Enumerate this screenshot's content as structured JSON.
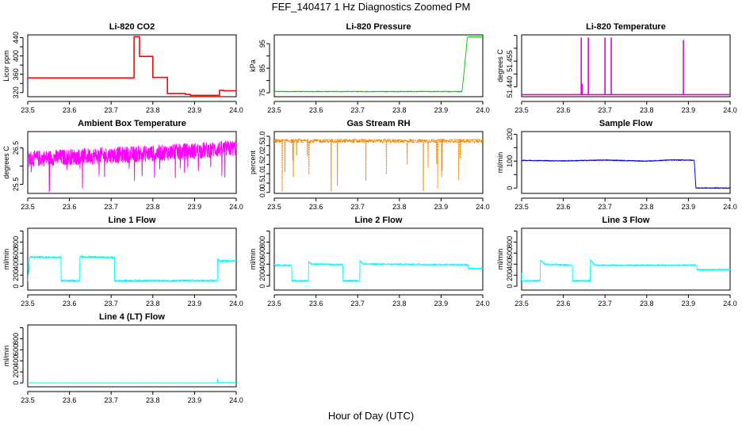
{
  "page": {
    "title": "FEF_140417  1 Hz Diagnostics Zoomed PM",
    "xlabel": "Hour of Day (UTC)"
  },
  "chart_data": [
    {
      "type": "line",
      "title": "Li-820 CO2",
      "xlabel": "",
      "ylabel": "Licor ppm",
      "color": "#ff0000",
      "xlim": [
        23.5,
        24.0
      ],
      "ylim": [
        311,
        446
      ],
      "xticks": [
        23.5,
        23.6,
        23.7,
        23.8,
        23.9,
        24.0
      ],
      "yticks": [
        320,
        340,
        360,
        380,
        400,
        420,
        440
      ],
      "ytick_labels": [
        "320",
        "",
        "360",
        "",
        "400",
        "",
        "440"
      ],
      "x": [
        23.5,
        23.755,
        23.755,
        23.768,
        23.768,
        23.8,
        23.8,
        23.835,
        23.835,
        23.878,
        23.878,
        23.89,
        23.89,
        23.96,
        23.96,
        23.97,
        23.97,
        24.0
      ],
      "y": [
        352,
        352,
        442,
        442,
        399,
        399,
        353,
        353,
        318,
        318,
        316,
        316,
        314,
        314,
        325,
        325,
        324,
        324
      ]
    },
    {
      "type": "line",
      "title": "Li-820 Pressure",
      "xlabel": "",
      "ylabel": "kPa",
      "color": "#00cc00",
      "xlim": [
        23.5,
        24.0
      ],
      "ylim": [
        73.4,
        98.6
      ],
      "xticks": [
        23.5,
        23.6,
        23.7,
        23.8,
        23.9,
        24.0
      ],
      "yticks": [
        75,
        80,
        85,
        90,
        95
      ],
      "ytick_labels": [
        "75",
        "",
        "85",
        "",
        "95"
      ],
      "x": [
        23.5,
        23.9,
        23.95,
        23.955,
        23.96,
        23.963,
        23.965,
        24.0
      ],
      "y": [
        75.5,
        75.5,
        75.5,
        83,
        92,
        97.6,
        97.8,
        97.8
      ]
    },
    {
      "type": "line",
      "title": "Li-820 Temperature",
      "xlabel": "",
      "ylabel": "degrees C",
      "color": "#dd00dd",
      "xlim": [
        23.5,
        24.0
      ],
      "ylim": [
        51.4362,
        51.4602
      ],
      "xticks": [
        23.5,
        23.6,
        23.7,
        23.8,
        23.9,
        24.0
      ],
      "yticks": [
        51.44,
        51.445,
        51.45,
        51.455,
        51.46
      ],
      "ytick_labels": [
        "51.440",
        "",
        "51.455",
        "",
        ""
      ],
      "x": [
        23.5,
        23.643,
        23.643,
        23.643,
        23.645,
        23.645,
        23.645,
        23.66,
        23.66,
        23.66,
        23.7,
        23.7,
        23.7,
        23.715,
        23.715,
        23.715,
        23.888,
        23.888,
        23.888,
        24.0
      ],
      "y": [
        51.437,
        51.437,
        51.459,
        51.437,
        51.437,
        51.441,
        51.437,
        51.437,
        51.459,
        51.437,
        51.437,
        51.459,
        51.437,
        51.437,
        51.459,
        51.437,
        51.437,
        51.458,
        51.437,
        51.437
      ]
    },
    {
      "type": "line",
      "title": "Ambient Box Temperature",
      "xlabel": "",
      "ylabel": "degrees C",
      "color": "#ff00ff",
      "xlim": [
        23.5,
        24.0
      ],
      "ylim": [
        25.25,
        26.95
      ],
      "xticks": [
        23.5,
        23.6,
        23.7,
        23.8,
        23.9,
        24.0
      ],
      "yticks": [
        25.5,
        26.0,
        26.5
      ],
      "ytick_labels": [
        "25.5",
        "",
        "26.5"
      ],
      "x": [
        23.5,
        23.6,
        23.7,
        23.8,
        23.9,
        24.0
      ],
      "y": [
        26.2,
        26.25,
        26.3,
        26.35,
        26.42,
        26.5
      ]
    },
    {
      "type": "line",
      "title": "Gas Stream RH",
      "xlabel": "",
      "ylabel": "percent",
      "color": "#ee8800",
      "xlim": [
        23.5,
        24.0
      ],
      "ylim": [
        -0.05,
        3.25
      ],
      "xticks": [
        23.5,
        23.6,
        23.7,
        23.8,
        23.9,
        24.0
      ],
      "yticks": [
        0.0,
        0.5,
        1.0,
        1.5,
        2.0,
        2.5,
        3.0
      ],
      "ytick_labels": [
        "0.0",
        "0.5",
        "1.0",
        "1.5",
        "2.0",
        "2.5",
        "3.0"
      ],
      "x": [
        23.5,
        23.6,
        23.7,
        23.8,
        23.9,
        24.0
      ],
      "y": [
        2.75,
        2.75,
        2.75,
        2.75,
        2.75,
        2.75
      ]
    },
    {
      "type": "line",
      "title": "Sample Flow",
      "xlabel": "",
      "ylabel": "ml/min",
      "color": "#0000dd",
      "xlim": [
        23.5,
        24.0
      ],
      "ylim": [
        -20,
        210
      ],
      "xticks": [
        23.5,
        23.6,
        23.7,
        23.8,
        23.9,
        24.0
      ],
      "yticks": [
        0,
        50,
        100,
        150,
        200
      ],
      "ytick_labels": [
        "0",
        "",
        "100",
        "",
        "200"
      ],
      "x": [
        23.5,
        23.6,
        23.7,
        23.8,
        23.85,
        23.9,
        23.914,
        23.918,
        24.0
      ],
      "y": [
        103,
        101,
        104,
        100,
        104,
        104,
        103,
        0,
        0
      ]
    },
    {
      "type": "line",
      "title": "Line 1 Flow",
      "xlabel": "",
      "ylabel": "ml/min",
      "color": "#00ffff",
      "xlim": [
        23.5,
        24.0
      ],
      "ylim": [
        -70,
        1050
      ],
      "xticks": [
        23.5,
        23.6,
        23.7,
        23.8,
        23.9,
        24.0
      ],
      "yticks": [
        0,
        200,
        400,
        600,
        800,
        1000
      ],
      "ytick_labels": [
        "0",
        "200",
        "400",
        "600",
        "800",
        ""
      ],
      "x": [
        23.5,
        23.505,
        23.58,
        23.58,
        23.625,
        23.625,
        23.63,
        23.708,
        23.708,
        23.955,
        23.955,
        23.96,
        23.97,
        24.0
      ],
      "y": [
        100,
        530,
        520,
        100,
        100,
        550,
        530,
        520,
        100,
        100,
        500,
        450,
        460,
        460
      ]
    },
    {
      "type": "line",
      "title": "Line 2 Flow",
      "xlabel": "",
      "ylabel": "ml/min",
      "color": "#00ffff",
      "xlim": [
        23.5,
        24.0
      ],
      "ylim": [
        -70,
        1050
      ],
      "xticks": [
        23.5,
        23.6,
        23.7,
        23.8,
        23.9,
        24.0
      ],
      "yticks": [
        0,
        200,
        400,
        600,
        800,
        1000
      ],
      "ytick_labels": [
        "0",
        "200",
        "400",
        "600",
        "800",
        ""
      ],
      "x": [
        23.5,
        23.542,
        23.542,
        23.582,
        23.582,
        23.59,
        23.665,
        23.665,
        23.705,
        23.705,
        23.715,
        23.965,
        23.965,
        24.0
      ],
      "y": [
        380,
        380,
        100,
        100,
        450,
        400,
        390,
        100,
        100,
        460,
        400,
        390,
        320,
        320
      ]
    },
    {
      "type": "line",
      "title": "Line 3 Flow",
      "xlabel": "",
      "ylabel": "ml/min",
      "color": "#00ffff",
      "xlim": [
        23.5,
        24.0
      ],
      "ylim": [
        -70,
        1050
      ],
      "xticks": [
        23.5,
        23.6,
        23.7,
        23.8,
        23.9,
        24.0
      ],
      "yticks": [
        0,
        200,
        400,
        600,
        800,
        1000
      ],
      "ytick_labels": [
        "0",
        "200",
        "400",
        "600",
        "800",
        ""
      ],
      "x": [
        23.5,
        23.5,
        23.545,
        23.545,
        23.555,
        23.622,
        23.622,
        23.665,
        23.665,
        23.675,
        23.92,
        23.92,
        24.0
      ],
      "y": [
        250,
        100,
        100,
        480,
        400,
        380,
        100,
        100,
        480,
        380,
        380,
        300,
        300
      ]
    },
    {
      "type": "line",
      "title": "Line 4 (LT) Flow",
      "xlabel": "",
      "ylabel": "ml/min",
      "color": "#00ffff",
      "xlim": [
        23.5,
        24.0
      ],
      "ylim": [
        -70,
        1050
      ],
      "xticks": [
        23.5,
        23.6,
        23.7,
        23.8,
        23.9,
        24.0
      ],
      "yticks": [
        0,
        200,
        400,
        600,
        800,
        1000
      ],
      "ytick_labels": [
        "0",
        "200",
        "400",
        "600",
        "800",
        ""
      ],
      "x": [
        23.5,
        23.955,
        23.955,
        23.957,
        24.0
      ],
      "y": [
        0,
        0,
        100,
        5,
        5
      ]
    }
  ]
}
